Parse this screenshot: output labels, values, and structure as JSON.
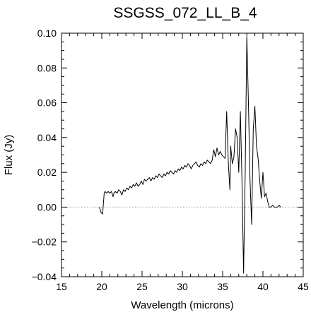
{
  "chart_data": {
    "type": "line",
    "title": "SSGSS_072_LL_B_4",
    "xlabel": "Wavelength (microns)",
    "ylabel": "Flux (Jy)",
    "xlim": [
      15,
      45
    ],
    "ylim": [
      -0.04,
      0.1
    ],
    "xticks": [
      15,
      20,
      25,
      30,
      35,
      40,
      45
    ],
    "xtick_labels": [
      "15",
      "20",
      "25",
      "30",
      "35",
      "40",
      "45"
    ],
    "yticks": [
      -0.04,
      -0.02,
      0.0,
      0.02,
      0.04,
      0.06,
      0.08,
      0.1
    ],
    "ytick_labels": [
      "−0.04",
      "−0.02",
      "0.00",
      "0.02",
      "0.04",
      "0.06",
      "0.08",
      "0.10"
    ],
    "reference_line": {
      "y": 0.0,
      "style": "dotted"
    },
    "grid": false,
    "series": [
      {
        "x": [
          19.7,
          19.9,
          20.1,
          20.2,
          20.3,
          20.4,
          20.6,
          20.8,
          21.0,
          21.2,
          21.4,
          21.5,
          21.7,
          21.9,
          22.1,
          22.3,
          22.5,
          22.7,
          22.9,
          23.1,
          23.3,
          23.5,
          23.7,
          23.9,
          24.1,
          24.3,
          24.5,
          24.7,
          24.9,
          25.1,
          25.3,
          25.5,
          25.7,
          25.9,
          26.1,
          26.3,
          26.5,
          26.7,
          26.9,
          27.1,
          27.3,
          27.5,
          27.7,
          27.9,
          28.1,
          28.3,
          28.5,
          28.7,
          28.9,
          29.1,
          29.3,
          29.5,
          29.7,
          29.9,
          30.1,
          30.3,
          30.5,
          30.7,
          30.9,
          31.1,
          31.3,
          31.5,
          31.7,
          31.9,
          32.1,
          32.3,
          32.5,
          32.7,
          32.9,
          33.1,
          33.3,
          33.5,
          33.7,
          33.9,
          34.1,
          34.3,
          34.5,
          34.7,
          34.9,
          35.1,
          35.3,
          35.5,
          35.7,
          35.9,
          36.0,
          36.2,
          36.4,
          36.6,
          36.8,
          37.0,
          37.2,
          37.4,
          37.6,
          37.8,
          38.0,
          38.2,
          38.4,
          38.6,
          38.8,
          39.0,
          39.2,
          39.4,
          39.6,
          39.8,
          40.0,
          40.2,
          40.4,
          40.6,
          40.8,
          41.0,
          41.2,
          41.4,
          41.6,
          41.8,
          42.0,
          42.2
        ],
        "y": [
          0.0,
          -0.003,
          -0.004,
          0.002,
          0.008,
          0.009,
          0.008,
          0.009,
          0.008,
          0.009,
          0.006,
          0.008,
          0.009,
          0.008,
          0.01,
          0.009,
          0.007,
          0.01,
          0.009,
          0.011,
          0.01,
          0.012,
          0.011,
          0.013,
          0.012,
          0.014,
          0.012,
          0.013,
          0.015,
          0.013,
          0.016,
          0.015,
          0.016,
          0.017,
          0.015,
          0.017,
          0.016,
          0.018,
          0.017,
          0.019,
          0.018,
          0.017,
          0.019,
          0.018,
          0.02,
          0.019,
          0.021,
          0.02,
          0.019,
          0.021,
          0.02,
          0.022,
          0.021,
          0.023,
          0.022,
          0.024,
          0.023,
          0.025,
          0.024,
          0.022,
          0.024,
          0.025,
          0.026,
          0.024,
          0.023,
          0.025,
          0.024,
          0.026,
          0.025,
          0.027,
          0.026,
          0.025,
          0.027,
          0.033,
          0.029,
          0.034,
          0.03,
          0.032,
          0.03,
          0.029,
          0.028,
          0.055,
          0.026,
          0.01,
          0.035,
          0.025,
          0.029,
          0.045,
          0.04,
          0.02,
          0.055,
          0.015,
          -0.038,
          0.02,
          0.098,
          0.06,
          0.015,
          -0.01,
          0.045,
          0.058,
          0.035,
          0.028,
          0.015,
          0.005,
          0.02,
          0.006,
          0.008,
          0.003,
          0.0,
          0.0,
          0.001,
          0.0,
          0.0,
          0.0,
          0.001,
          0.0
        ]
      }
    ]
  }
}
